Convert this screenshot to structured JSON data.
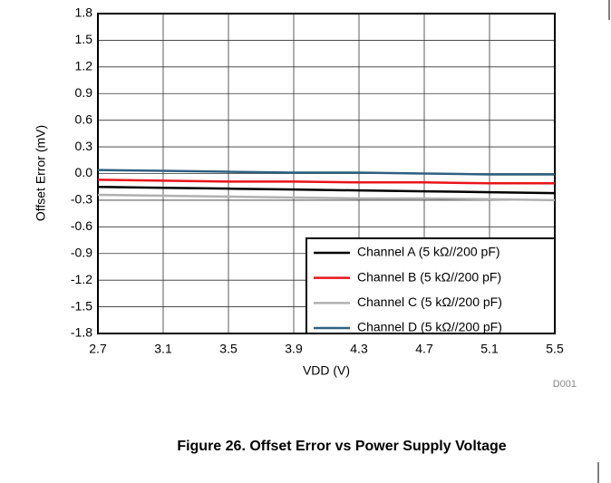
{
  "chart_data": {
    "type": "line",
    "title": "Figure 26. Offset Error vs Power Supply Voltage",
    "xlabel": "VDD (V)",
    "ylabel": "Offset Error (mV)",
    "annotation": "D001",
    "x": [
      2.7,
      3.1,
      3.5,
      3.9,
      4.3,
      4.7,
      5.1,
      5.5
    ],
    "series": [
      {
        "name": "Channel A (5 kΩ//200 pF)",
        "color": "#000000",
        "values": [
          -0.15,
          -0.16,
          -0.17,
          -0.18,
          -0.19,
          -0.2,
          -0.21,
          -0.22
        ]
      },
      {
        "name": "Channel B (5 kΩ//200 pF)",
        "color": "#e8141b",
        "values": [
          -0.07,
          -0.08,
          -0.09,
          -0.09,
          -0.1,
          -0.1,
          -0.11,
          -0.11
        ]
      },
      {
        "name": "Channel C (5 kΩ//200 pF)",
        "color": "#b0b0b0",
        "values": [
          -0.24,
          -0.25,
          -0.26,
          -0.27,
          -0.28,
          -0.28,
          -0.29,
          -0.3
        ]
      },
      {
        "name": "Channel D (5 kΩ//200 pF)",
        "color": "#2e6080",
        "values": [
          0.04,
          0.03,
          0.02,
          0.01,
          0.01,
          0.0,
          -0.01,
          -0.01
        ]
      }
    ],
    "xlim": [
      2.7,
      5.5
    ],
    "xticks": [
      2.7,
      3.1,
      3.5,
      3.9,
      4.3,
      4.7,
      5.1,
      5.5
    ],
    "ylim": [
      -1.8,
      1.8
    ],
    "yticks": [
      -1.8,
      -1.5,
      -1.2,
      -0.9,
      -0.6,
      -0.3,
      {
        "value": 0,
        "label": "0.0"
      },
      0.3,
      0.6,
      0.9,
      1.2,
      1.5,
      1.8
    ],
    "grid": true,
    "legend": "lower right"
  }
}
